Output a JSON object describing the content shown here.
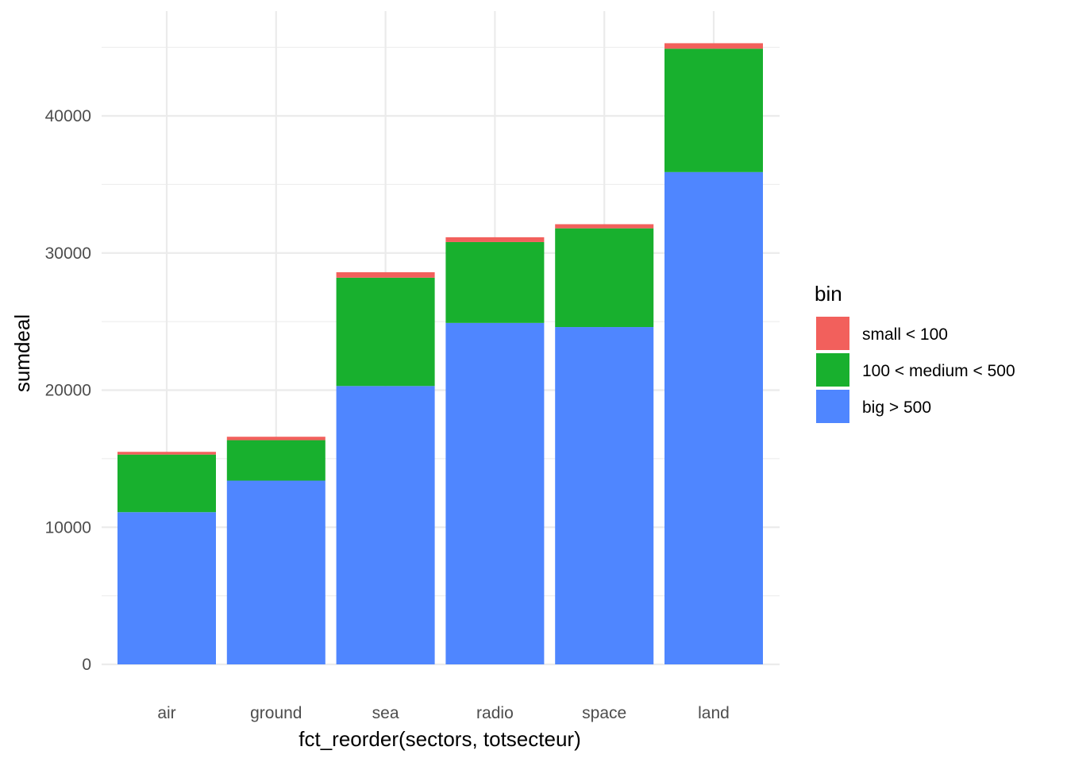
{
  "chart_data": {
    "type": "bar",
    "stacked": true,
    "title": "",
    "xlabel": "fct_reorder(sectors, totsecteur)",
    "ylabel": "sumdeal",
    "categories": [
      "air",
      "ground",
      "sea",
      "radio",
      "space",
      "land"
    ],
    "series": [
      {
        "name": "big > 500",
        "color": "#4F86FF",
        "values": [
          11100,
          13400,
          20300,
          24900,
          24600,
          35900
        ]
      },
      {
        "name": "100 < medium < 500",
        "color": "#18B02E",
        "values": [
          4200,
          2950,
          7900,
          5900,
          7200,
          9000
        ]
      },
      {
        "name": "small < 100",
        "color": "#F2605C",
        "values": [
          200,
          250,
          400,
          350,
          300,
          400
        ]
      }
    ],
    "ylim": [
      0,
      46000
    ],
    "yticks": [
      0,
      10000,
      20000,
      30000,
      40000
    ],
    "ytick_labels": [
      "0",
      "10000",
      "20000",
      "30000",
      "40000"
    ],
    "grid": true,
    "legend": {
      "title": "bin",
      "position": "right",
      "order": [
        "small < 100",
        "100 < medium < 500",
        "big > 500"
      ]
    }
  }
}
